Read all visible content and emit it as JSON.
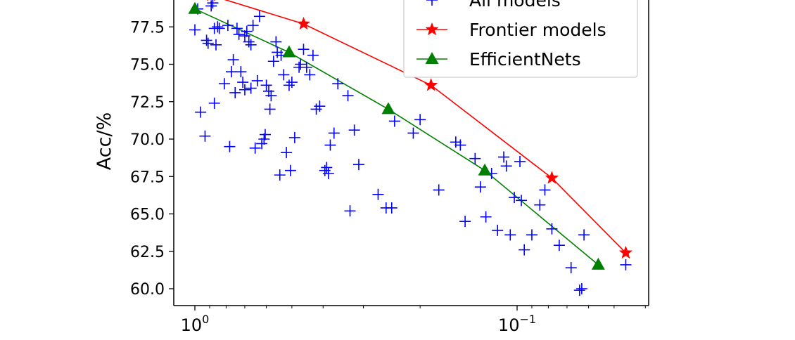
{
  "chart_data": {
    "type": "scatter",
    "title": "",
    "xlabel": "",
    "ylabel": "Acc/%",
    "x_scale": "log",
    "x_reversed": true,
    "xlim": [
      1.15,
      0.038
    ],
    "ylim": [
      59.0,
      79.7
    ],
    "grid": false,
    "legend_position": "top-right",
    "x_tick_labels": [
      {
        "value": 1.0,
        "base": "10",
        "exp": "0"
      },
      {
        "value": 0.1,
        "base": "10",
        "exp": "−1"
      }
    ],
    "y_ticks": [
      60.0,
      62.5,
      65.0,
      67.5,
      70.0,
      72.5,
      75.0,
      77.5
    ],
    "y_tick_labels": [
      "60.0",
      "62.5",
      "65.0",
      "67.5",
      "70.0",
      "72.5",
      "75.0",
      "77.5"
    ],
    "series": [
      {
        "name": "All models",
        "marker": "plus",
        "color": "#0000ff",
        "points": [
          [
            0.98,
            78.7
          ],
          [
            1.0,
            77.3
          ],
          [
            0.96,
            71.8
          ],
          [
            0.93,
            70.2
          ],
          [
            0.92,
            76.6
          ],
          [
            0.91,
            76.4
          ],
          [
            0.89,
            78.9
          ],
          [
            0.88,
            79.1
          ],
          [
            0.87,
            72.4
          ],
          [
            0.87,
            77.4
          ],
          [
            0.86,
            76.3
          ],
          [
            0.85,
            77.5
          ],
          [
            0.84,
            77.4
          ],
          [
            0.81,
            73.7
          ],
          [
            0.79,
            77.6
          ],
          [
            0.78,
            69.5
          ],
          [
            0.76,
            75.3
          ],
          [
            0.77,
            74.5
          ],
          [
            0.75,
            73.1
          ],
          [
            0.74,
            77.4
          ],
          [
            0.73,
            77.0
          ],
          [
            0.72,
            74.5
          ],
          [
            0.71,
            73.8
          ],
          [
            0.7,
            73.3
          ],
          [
            0.7,
            76.9
          ],
          [
            0.69,
            77.2
          ],
          [
            0.68,
            76.5
          ],
          [
            0.67,
            76.3
          ],
          [
            0.67,
            73.4
          ],
          [
            0.66,
            77.6
          ],
          [
            0.65,
            69.4
          ],
          [
            0.64,
            73.9
          ],
          [
            0.63,
            78.2
          ],
          [
            0.62,
            69.7
          ],
          [
            0.61,
            70.0
          ],
          [
            0.605,
            70.3
          ],
          [
            0.6,
            73.6
          ],
          [
            0.59,
            73.2
          ],
          [
            0.585,
            72.0
          ],
          [
            0.58,
            72.9
          ],
          [
            0.57,
            75.2
          ],
          [
            0.56,
            76.5
          ],
          [
            0.555,
            75.8
          ],
          [
            0.545,
            67.6
          ],
          [
            0.54,
            75.6
          ],
          [
            0.53,
            74.3
          ],
          [
            0.52,
            69.1
          ],
          [
            0.51,
            73.6
          ],
          [
            0.505,
            67.9
          ],
          [
            0.5,
            73.8
          ],
          [
            0.49,
            70.1
          ],
          [
            0.475,
            74.8
          ],
          [
            0.47,
            75.0
          ],
          [
            0.46,
            76.0
          ],
          [
            0.45,
            74.8
          ],
          [
            0.44,
            74.3
          ],
          [
            0.43,
            75.6
          ],
          [
            0.42,
            72.0
          ],
          [
            0.41,
            72.2
          ],
          [
            0.395,
            67.9
          ],
          [
            0.39,
            68.1
          ],
          [
            0.385,
            67.7
          ],
          [
            0.38,
            69.6
          ],
          [
            0.37,
            70.4
          ],
          [
            0.36,
            73.7
          ],
          [
            0.335,
            72.9
          ],
          [
            0.33,
            65.2
          ],
          [
            0.32,
            70.6
          ],
          [
            0.31,
            68.3
          ],
          [
            0.27,
            66.3
          ],
          [
            0.255,
            65.4
          ],
          [
            0.245,
            65.4
          ],
          [
            0.24,
            71.2
          ],
          [
            0.21,
            70.4
          ],
          [
            0.2,
            71.3
          ],
          [
            0.175,
            66.6
          ],
          [
            0.155,
            69.8
          ],
          [
            0.15,
            69.6
          ],
          [
            0.145,
            64.5
          ],
          [
            0.135,
            68.7
          ],
          [
            0.13,
            66.8
          ],
          [
            0.125,
            64.8
          ],
          [
            0.12,
            67.7
          ],
          [
            0.115,
            63.9
          ],
          [
            0.11,
            68.8
          ],
          [
            0.108,
            68.2
          ],
          [
            0.105,
            63.6
          ],
          [
            0.102,
            66.1
          ],
          [
            0.098,
            68.5
          ],
          [
            0.097,
            65.9
          ],
          [
            0.095,
            62.6
          ],
          [
            0.09,
            63.6
          ],
          [
            0.085,
            65.6
          ],
          [
            0.082,
            66.6
          ],
          [
            0.078,
            64.0
          ],
          [
            0.074,
            62.9
          ],
          [
            0.068,
            61.4
          ],
          [
            0.064,
            59.9
          ],
          [
            0.063,
            60.0
          ],
          [
            0.062,
            63.6
          ],
          [
            0.046,
            61.6
          ]
        ]
      },
      {
        "name": "Frontier models",
        "marker": "star",
        "color": "#ff0000",
        "points": [
          [
            0.89,
            79.6
          ],
          [
            0.46,
            77.7
          ],
          [
            0.185,
            73.6
          ],
          [
            0.078,
            67.4
          ],
          [
            0.046,
            62.4
          ]
        ]
      },
      {
        "name": "EfficientNets",
        "marker": "triangle",
        "color": "#008000",
        "points": [
          [
            1.0,
            78.7
          ],
          [
            0.51,
            75.8
          ],
          [
            0.251,
            72.0
          ],
          [
            0.126,
            67.9
          ],
          [
            0.056,
            61.6
          ]
        ]
      }
    ]
  }
}
